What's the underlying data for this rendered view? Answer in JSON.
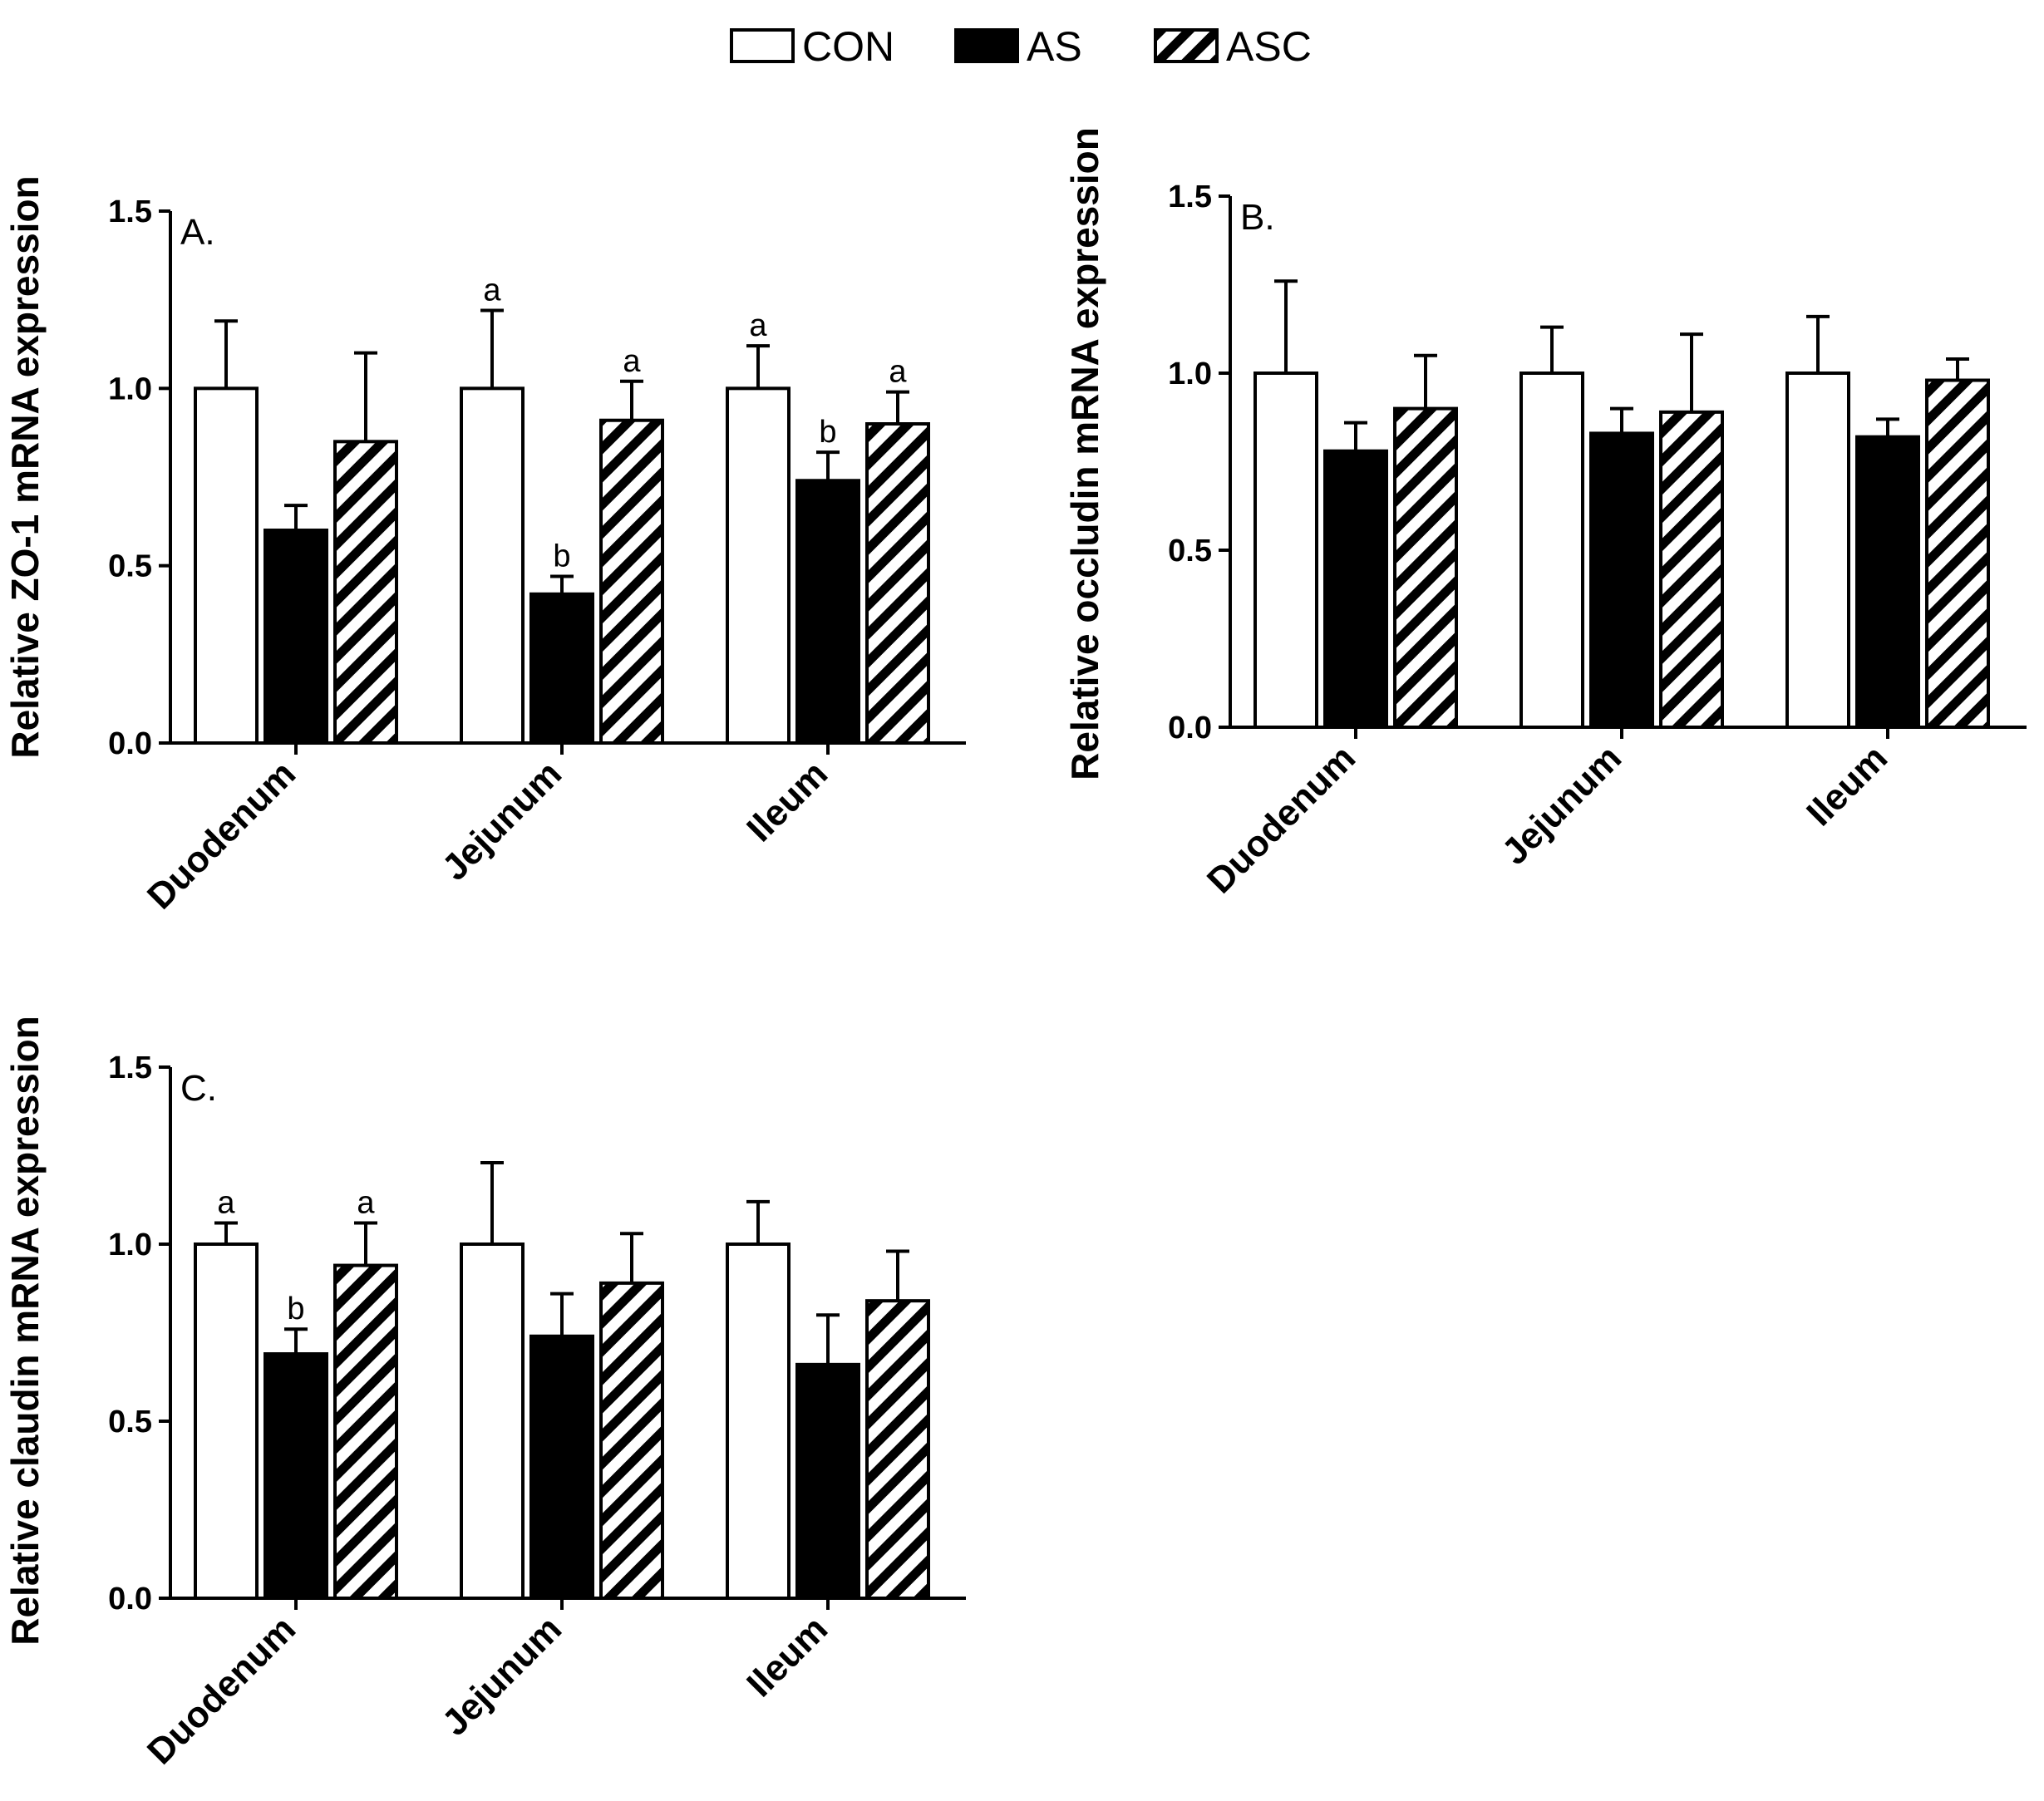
{
  "legend": [
    {
      "name": "CON",
      "style": "open"
    },
    {
      "name": "AS",
      "style": "solid"
    },
    {
      "name": "ASC",
      "style": "hatched"
    }
  ],
  "colors": {
    "ink": "#000000",
    "paper": "#ffffff"
  },
  "chart_data": [
    {
      "type": "bar",
      "panel_label": "A.",
      "title": "",
      "ylabel": "Relative ZO-1 mRNA expression",
      "xlabel": "",
      "ylim": [
        0,
        1.5
      ],
      "yticks": [
        "0.0",
        "0.5",
        "1.0",
        "1.5"
      ],
      "categories": [
        "Duodenum",
        "Jejunum",
        "Ileum"
      ],
      "series": [
        {
          "name": "CON",
          "values": [
            1.0,
            1.0,
            1.0
          ],
          "errors": [
            0.19,
            0.22,
            0.12
          ],
          "sig": [
            "",
            "a",
            "a"
          ]
        },
        {
          "name": "AS",
          "values": [
            0.6,
            0.42,
            0.74
          ],
          "errors": [
            0.07,
            0.05,
            0.08
          ],
          "sig": [
            "",
            "b",
            "b"
          ]
        },
        {
          "name": "ASC",
          "values": [
            0.85,
            0.91,
            0.9
          ],
          "errors": [
            0.25,
            0.11,
            0.09
          ],
          "sig": [
            "",
            "a",
            "a"
          ]
        }
      ]
    },
    {
      "type": "bar",
      "panel_label": "B.",
      "title": "",
      "ylabel": "Relative occludin mRNA expression",
      "xlabel": "",
      "ylim": [
        0,
        1.5
      ],
      "yticks": [
        "0.0",
        "0.5",
        "1.0",
        "1.5"
      ],
      "categories": [
        "Duodenum",
        "Jejunum",
        "Ileum"
      ],
      "series": [
        {
          "name": "CON",
          "values": [
            1.0,
            1.0,
            1.0
          ],
          "errors": [
            0.26,
            0.13,
            0.16
          ],
          "sig": [
            "",
            "",
            ""
          ]
        },
        {
          "name": "AS",
          "values": [
            0.78,
            0.83,
            0.82
          ],
          "errors": [
            0.08,
            0.07,
            0.05
          ],
          "sig": [
            "",
            "",
            ""
          ]
        },
        {
          "name": "ASC",
          "values": [
            0.9,
            0.89,
            0.98
          ],
          "errors": [
            0.15,
            0.22,
            0.06
          ],
          "sig": [
            "",
            "",
            ""
          ]
        }
      ]
    },
    {
      "type": "bar",
      "panel_label": "C.",
      "title": "",
      "ylabel": "Relative claudin mRNA expression",
      "xlabel": "",
      "ylim": [
        0,
        1.5
      ],
      "yticks": [
        "0.0",
        "0.5",
        "1.0",
        "1.5"
      ],
      "categories": [
        "Duodenum",
        "Jejunum",
        "Ileum"
      ],
      "series": [
        {
          "name": "CON",
          "values": [
            1.0,
            1.0,
            1.0
          ],
          "errors": [
            0.06,
            0.23,
            0.12
          ],
          "sig": [
            "a",
            "",
            ""
          ]
        },
        {
          "name": "AS",
          "values": [
            0.69,
            0.74,
            0.66
          ],
          "errors": [
            0.07,
            0.12,
            0.14
          ],
          "sig": [
            "b",
            "",
            ""
          ]
        },
        {
          "name": "ASC",
          "values": [
            0.94,
            0.89,
            0.84
          ],
          "errors": [
            0.12,
            0.14,
            0.14
          ],
          "sig": [
            "a",
            "",
            ""
          ]
        }
      ]
    }
  ]
}
